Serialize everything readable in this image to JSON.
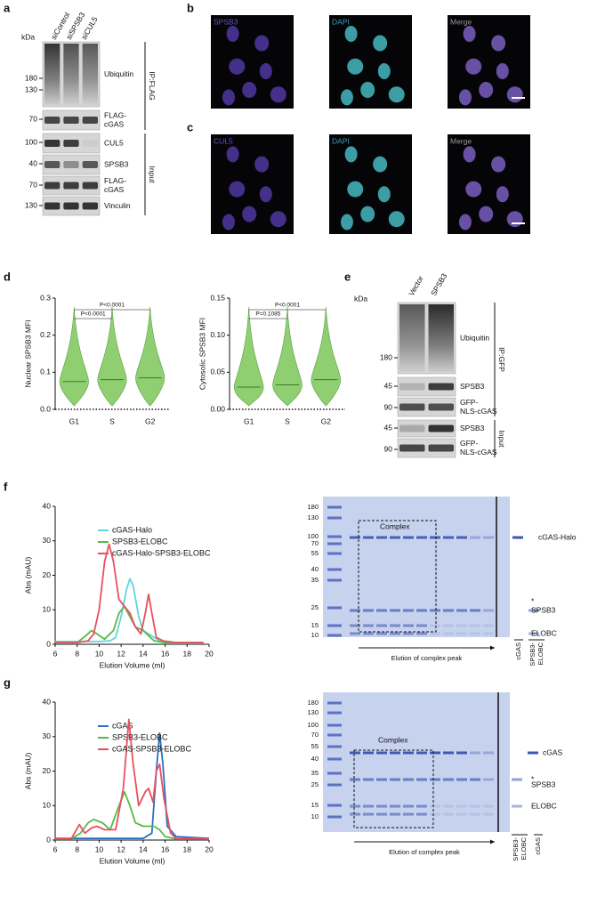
{
  "a": {
    "label": "a",
    "kda": "kDa",
    "lanes": [
      "siControl",
      "siSPSB3",
      "siCUL5"
    ],
    "markers": [
      180,
      130,
      70,
      100,
      40,
      70,
      130
    ],
    "bands": [
      [
        "Ubiquitin"
      ],
      [
        "FLAG-",
        "cGAS"
      ],
      [
        "CUL5"
      ],
      [
        "SPSB3"
      ],
      [
        "FLAG-",
        "cGAS"
      ],
      [
        "Vinculin"
      ]
    ],
    "groups": [
      "IP:FLAG",
      "Input"
    ]
  },
  "b": {
    "label": "b",
    "channels": [
      "SPSB3",
      "DAPI",
      "Merge"
    ]
  },
  "c": {
    "label": "c",
    "channels": [
      "CUL5",
      "DAPI",
      "Merge"
    ]
  },
  "d": {
    "label": "d"
  },
  "e": {
    "label": "e",
    "kda": "kDa",
    "lanes": [
      "Vector",
      "SPSB3"
    ],
    "markers": [
      180,
      45,
      90,
      45,
      90
    ],
    "bands": [
      [
        "Ubiquitin"
      ],
      [
        "SPSB3"
      ],
      [
        "GFP-",
        "NLS-cGAS"
      ],
      [
        "SPSB3"
      ],
      [
        "GFP-",
        "NLS-cGAS"
      ]
    ],
    "groups": [
      "IP:GFP",
      "Input"
    ]
  },
  "f": {
    "label": "f",
    "gel": {
      "markers": [
        180,
        130,
        100,
        70,
        55,
        40,
        35,
        25,
        15,
        10
      ],
      "box": "Complex",
      "arrow": "Elution of complex peak",
      "bands": [
        "cGAS-Halo",
        "*",
        "SPSB3",
        "ELOBC"
      ],
      "lanes": [
        [
          "cGAS"
        ],
        [
          "SPSB3-",
          "ELOBC"
        ]
      ]
    }
  },
  "g": {
    "label": "g",
    "gel": {
      "markers": [
        180,
        130,
        100,
        70,
        55,
        40,
        35,
        25,
        15,
        10
      ],
      "box": "Complex",
      "arrow": "Elution of complex peak",
      "bands": [
        "cGAS",
        "*",
        "SPSB3",
        "ELOBC"
      ],
      "lanes": [
        [
          "SPSB3-",
          "ELOBC"
        ],
        [
          "cGAS"
        ]
      ]
    }
  },
  "chart_data": [
    {
      "type": "violin",
      "ylabel": "Nuclear SPSB3 MFI",
      "categories": [
        "G1",
        "S",
        "G2"
      ],
      "values": [
        0.075,
        0.08,
        0.085
      ],
      "color": "#8fcf72",
      "ylim": [
        0,
        0.3
      ],
      "yticks": [
        {
          "value": 0,
          "label": "0.0"
        },
        0.1,
        0.2,
        0.3
      ],
      "annotations": [
        "P<0.0001",
        "P<0.0001"
      ]
    },
    {
      "type": "violin",
      "ylabel": "Cytosolic SPSB3 MFI",
      "categories": [
        "G1",
        "S",
        "G2"
      ],
      "values": [
        0.03,
        0.033,
        0.04
      ],
      "color": "#8fcf72",
      "ylim": [
        0,
        0.15
      ],
      "yticks": [
        {
          "value": 0,
          "label": "0.00"
        },
        0.05,
        {
          "value": 0.1,
          "label": "0.10"
        },
        {
          "value": 0.15,
          "label": "0.15"
        }
      ],
      "annotations": [
        "P<0.0001",
        "P=0.1085"
      ]
    },
    {
      "type": "line",
      "xlabel": "Elution Volume (ml)",
      "ylabel": "Abs (mAU)",
      "xlim": [
        6,
        20
      ],
      "xticks": [
        6,
        8,
        10,
        12,
        14,
        16,
        18,
        20
      ],
      "ylim": [
        0,
        40
      ],
      "yticks": [
        0,
        10,
        20,
        30,
        40
      ],
      "legend": "upper right",
      "series": [
        {
          "name": "cGAS-Halo",
          "color": "#5ed6dc",
          "x": [
            6,
            8,
            10,
            11,
            11.5,
            12,
            12.5,
            12.8,
            13.1,
            13.6,
            14,
            14.5,
            15,
            15.5,
            16,
            18,
            19.5
          ],
          "values": [
            0.8,
            0.8,
            0.8,
            1,
            2,
            8,
            16,
            19,
            17,
            8,
            4,
            3,
            2,
            1,
            0.5,
            0.5,
            0.5
          ]
        },
        {
          "name": "SPSB3-ELOBC",
          "color": "#58b947",
          "x": [
            6,
            8,
            8.8,
            9.3,
            9.8,
            10.5,
            11.3,
            11.8,
            12.3,
            12.8,
            13.3,
            14,
            14.5,
            15,
            16,
            18,
            19.5
          ],
          "values": [
            0.5,
            0.5,
            2.5,
            4,
            3,
            1.5,
            4,
            9,
            11,
            8,
            5,
            4,
            2.5,
            1,
            0.5,
            0.5,
            0.5
          ]
        },
        {
          "name": "cGAS-Halo-SPSB3-ELOBC",
          "color": "#e8505c",
          "x": [
            6,
            8,
            9,
            9.5,
            10,
            10.5,
            10.9,
            11.3,
            11.8,
            12.3,
            12.8,
            13.3,
            13.8,
            14.2,
            14.5,
            14.8,
            15.2,
            15.8,
            17,
            19.5
          ],
          "values": [
            0.5,
            0.5,
            1,
            3,
            10,
            24,
            29,
            24,
            13,
            11,
            9,
            5,
            3,
            9,
            14.5,
            9,
            2,
            1,
            0.5,
            0.5
          ]
        }
      ]
    },
    {
      "type": "line",
      "xlabel": "Elution Volume (ml)",
      "ylabel": "Abs (mAU)",
      "xlim": [
        6,
        20
      ],
      "xticks": [
        6,
        8,
        10,
        12,
        14,
        16,
        18,
        20
      ],
      "ylim": [
        0,
        40
      ],
      "yticks": [
        0,
        10,
        20,
        30,
        40
      ],
      "legend": "upper right",
      "series": [
        {
          "name": "cGAS",
          "color": "#2c6fbf",
          "x": [
            6,
            8,
            10,
            12,
            14,
            14.8,
            15.2,
            15.5,
            15.8,
            16.2,
            17,
            20
          ],
          "values": [
            0.5,
            0.5,
            0.5,
            0.5,
            0.5,
            2,
            20,
            31,
            22,
            4,
            1,
            0.5
          ]
        },
        {
          "name": "SPSB3-ELOBC",
          "color": "#58b947",
          "x": [
            6,
            7.5,
            8.3,
            9,
            9.5,
            10.3,
            11,
            11.7,
            12.3,
            12.8,
            13.3,
            14,
            14.5,
            15,
            15.5,
            16,
            17,
            20
          ],
          "values": [
            0.3,
            0.3,
            2,
            5,
            6,
            5,
            3,
            9,
            14,
            10,
            5,
            4,
            4,
            4,
            3,
            1,
            0.3,
            0.3
          ]
        },
        {
          "name": "cGAS-SPSB3-ELOBC",
          "color": "#e8505c",
          "x": [
            6,
            7.5,
            8.2,
            8.7,
            9.3,
            9.8,
            10.5,
            11.5,
            12.2,
            12.7,
            13.1,
            13.6,
            14.2,
            14.5,
            14.9,
            15.2,
            15.5,
            15.9,
            16.5,
            17,
            20
          ],
          "values": [
            0.5,
            0.5,
            4.5,
            2,
            3.5,
            4,
            3,
            3,
            15,
            35,
            22,
            10,
            14,
            15,
            11,
            20,
            22,
            12,
            2,
            0.5,
            0.3
          ]
        }
      ]
    }
  ]
}
